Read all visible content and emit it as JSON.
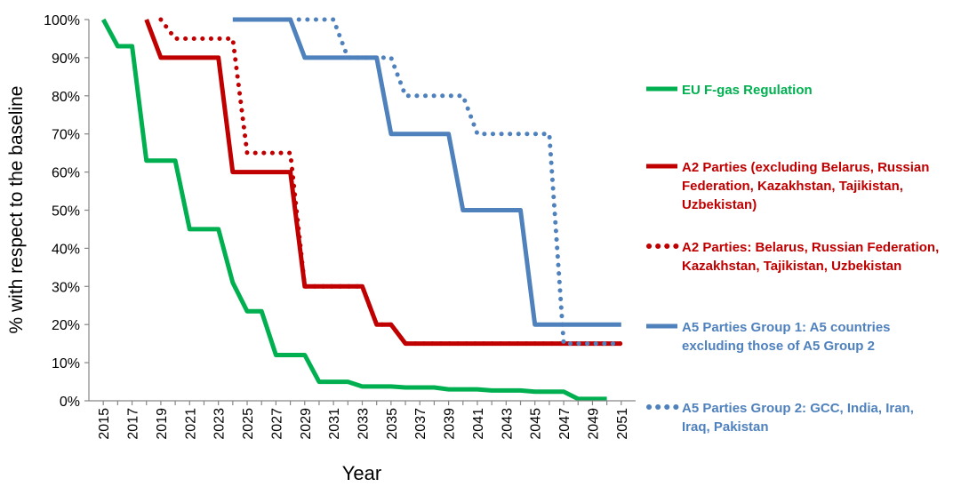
{
  "chart_data": {
    "type": "line",
    "title": "",
    "xlabel": "Year",
    "ylabel": "% with respect to the baseline",
    "xlim": [
      2014,
      2052
    ],
    "ylim": [
      0,
      100
    ],
    "x_ticks": [
      "2015",
      "2017",
      "2019",
      "2021",
      "2023",
      "2025",
      "2027",
      "2029",
      "2031",
      "2033",
      "2035",
      "2037",
      "2039",
      "2041",
      "2043",
      "2045",
      "2047",
      "2049",
      "2051"
    ],
    "y_ticks": [
      "0%",
      "10%",
      "20%",
      "30%",
      "40%",
      "50%",
      "60%",
      "70%",
      "80%",
      "90%",
      "100%"
    ],
    "legend_position": "right",
    "grid": false,
    "series": [
      {
        "name": "EU F-gas Regulation",
        "color": "#00b050",
        "style": "solid",
        "points": [
          [
            2015,
            100
          ],
          [
            2016,
            93
          ],
          [
            2017,
            93
          ],
          [
            2018,
            63
          ],
          [
            2020,
            63
          ],
          [
            2021,
            45
          ],
          [
            2023,
            45
          ],
          [
            2024,
            31
          ],
          [
            2025,
            23.5
          ],
          [
            2026,
            23.5
          ],
          [
            2027,
            12
          ],
          [
            2029,
            12
          ],
          [
            2030,
            5
          ],
          [
            2032,
            5
          ],
          [
            2033,
            3.75
          ],
          [
            2035,
            3.75
          ],
          [
            2036,
            3.5
          ],
          [
            2038,
            3.5
          ],
          [
            2039,
            3
          ],
          [
            2041,
            3
          ],
          [
            2042,
            2.7
          ],
          [
            2044,
            2.7
          ],
          [
            2045,
            2.4
          ],
          [
            2047,
            2.4
          ],
          [
            2048,
            0.5
          ],
          [
            2050,
            0.5
          ]
        ]
      },
      {
        "name": "A2 Parties (excluding Belarus, Russian Federation, Kazakhstan, Tajikistan, Uzbekistan)",
        "color": "#c00000",
        "style": "solid",
        "points": [
          [
            2018,
            100
          ],
          [
            2019,
            90
          ],
          [
            2023,
            90
          ],
          [
            2024,
            60
          ],
          [
            2028,
            60
          ],
          [
            2029,
            30
          ],
          [
            2033,
            30
          ],
          [
            2034,
            20
          ],
          [
            2035,
            20
          ],
          [
            2036,
            15
          ],
          [
            2051,
            15
          ]
        ]
      },
      {
        "name": "A2 Parties: Belarus, Russian Federation, Kazakhstan, Tajikistan, Uzbekistan",
        "color": "#c00000",
        "style": "dotted",
        "points": [
          [
            2019,
            100
          ],
          [
            2020,
            95
          ],
          [
            2024,
            95
          ],
          [
            2025,
            65
          ],
          [
            2028,
            65
          ],
          [
            2029,
            30
          ],
          [
            2033,
            30
          ],
          [
            2034,
            20
          ],
          [
            2035,
            20
          ],
          [
            2036,
            15
          ],
          [
            2051,
            15
          ]
        ]
      },
      {
        "name": "A5 Parties Group 1: A5 countries excluding those of A5 Group 2",
        "color": "#4f81bd",
        "style": "solid",
        "points": [
          [
            2024,
            100
          ],
          [
            2028,
            100
          ],
          [
            2029,
            90
          ],
          [
            2034,
            90
          ],
          [
            2035,
            70
          ],
          [
            2039,
            70
          ],
          [
            2040,
            50
          ],
          [
            2044,
            50
          ],
          [
            2045,
            20
          ],
          [
            2051,
            20
          ]
        ]
      },
      {
        "name": "A5 Parties Group 2: GCC, India, Iran, Iraq, Pakistan",
        "color": "#4f81bd",
        "style": "dotted",
        "points": [
          [
            2028,
            100
          ],
          [
            2031,
            100
          ],
          [
            2032,
            90
          ],
          [
            2035,
            90
          ],
          [
            2036,
            80
          ],
          [
            2040,
            80
          ],
          [
            2041,
            70
          ],
          [
            2045,
            70
          ],
          [
            2046,
            70
          ],
          [
            2047,
            15
          ],
          [
            2051,
            15
          ]
        ]
      }
    ]
  },
  "legend": [
    {
      "label_lines": [
        "EU F-gas Regulation"
      ],
      "color": "#00b050",
      "style": "solid"
    },
    {
      "label_lines": [
        "A2 Parties (excluding Belarus, Russian",
        "Federation, Kazakhstan, Tajikistan,",
        "Uzbekistan)"
      ],
      "color": "#c00000",
      "style": "solid"
    },
    {
      "label_lines": [
        "A2 Parties: Belarus, Russian Federation,",
        "Kazakhstan, Tajikistan, Uzbekistan"
      ],
      "color": "#c00000",
      "style": "dotted"
    },
    {
      "label_lines": [
        "A5 Parties Group 1: A5 countries",
        "excluding those of A5 Group 2"
      ],
      "color": "#4f81bd",
      "style": "solid"
    },
    {
      "label_lines": [
        "A5 Parties Group 2: GCC, India, Iran,",
        "Iraq, Pakistan"
      ],
      "color": "#4f81bd",
      "style": "dotted"
    }
  ]
}
